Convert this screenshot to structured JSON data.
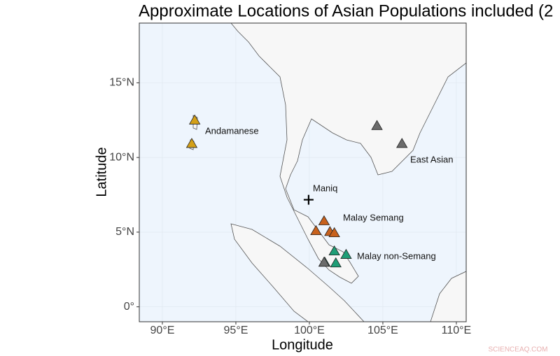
{
  "chart_data": {
    "type": "scatter",
    "title": "Approximate Locations of Asian Populations included (2",
    "x_label": "Longitude",
    "y_label": "Latitude",
    "xlim": [
      88.43,
      110.67
    ],
    "ylim": [
      -1,
      19
    ],
    "xticks": [
      {
        "value": 90,
        "label": "90°E"
      },
      {
        "value": 95,
        "label": "95°E"
      },
      {
        "value": 100,
        "label": "100°E"
      },
      {
        "value": 105,
        "label": "105°E"
      },
      {
        "value": 110,
        "label": "110°E"
      }
    ],
    "yticks": [
      {
        "value": 0,
        "label": "0°"
      },
      {
        "value": 5,
        "label": "5°N"
      },
      {
        "value": 10,
        "label": "10°N"
      },
      {
        "value": 15,
        "label": "15°N"
      }
    ],
    "grid": true,
    "series": [
      {
        "name": "Andamanese",
        "color": "#d4a017",
        "marker": "triangle",
        "x": [
          92.2,
          92.0
        ],
        "y": [
          12.47,
          10.9
        ]
      },
      {
        "name": "Malay non-Semang",
        "color": "#1f9e77",
        "marker": "triangle",
        "x": [
          101.7,
          102.5,
          101.8,
          101.05
        ],
        "y": [
          3.7,
          3.47,
          2.9,
          2.95
        ]
      },
      {
        "name": "East Asian",
        "color": "#6b6b6b",
        "marker": "triangle",
        "x": [
          104.6,
          106.3,
          101.0
        ],
        "y": [
          12.1,
          10.9,
          2.95
        ]
      },
      {
        "name": "Maniq",
        "color": "#000000",
        "marker": "cross",
        "x": [
          99.95
        ],
        "y": [
          7.17
        ]
      },
      {
        "name": "Malay Semang",
        "color": "#c8611c",
        "marker": "triangle",
        "x": [
          101.0,
          100.45,
          101.4,
          101.7
        ],
        "y": [
          5.72,
          5.06,
          5.0,
          4.92
        ]
      }
    ],
    "watermark": "SCIENCEAQ.COM"
  }
}
